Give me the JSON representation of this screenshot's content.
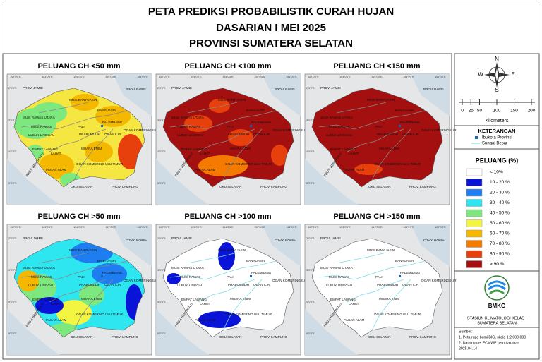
{
  "header": {
    "title": [
      "PETA PREDIKSI PROBABILISTIK CURAH HUJAN",
      "DASARIAN I MEI 2025",
      "PROVINSI SUMATERA SELATAN"
    ]
  },
  "panels": [
    {
      "title": "PELUANG CH <50 mm"
    },
    {
      "title": "PELUANG CH <100 mm"
    },
    {
      "title": "PELUANG CH <150 mm"
    },
    {
      "title": "PELUANG CH >50 mm"
    },
    {
      "title": "PELUANG CH >100 mm"
    },
    {
      "title": "PELUANG CH >150 mm"
    }
  ],
  "map_labels": [
    {
      "text": "PROV. JAMBI"
    },
    {
      "text": "PROV. BABEL"
    },
    {
      "text": "MUSI BANYUASIN"
    },
    {
      "text": "BANYUASIN"
    },
    {
      "text": "MUSI RAWAS UTARA"
    },
    {
      "text": "MUSI RAWAS"
    },
    {
      "text": "PALI"
    },
    {
      "text": "PALEMBANG"
    },
    {
      "text": "LUBUK LINGGAU"
    },
    {
      "text": "PRABUMULIH"
    },
    {
      "text": "OGAN ILIR"
    },
    {
      "text": "OGAN KOMERING ILIR"
    },
    {
      "text": "EMPAT LAWANG"
    },
    {
      "text": "LAHAT"
    },
    {
      "text": "MUARA ENIM"
    },
    {
      "text": "OGAN KOMERING ULU TIMUR"
    },
    {
      "text": "PAGAR ALAM"
    },
    {
      "text": "PROV. BENGKULU"
    },
    {
      "text": "OKU SELATAN"
    },
    {
      "text": "PROV. LAMPUNG"
    }
  ],
  "grid_labels": {
    "lon": [
      "102°0'0\"E",
      "103°0'0\"E",
      "104°0'0\"E",
      "105°0'0\"E",
      "106°0'0\"E"
    ],
    "lat": [
      "2°0'0\"S",
      "3°0'0\"S",
      "4°0'0\"S",
      "5°0'0\"S"
    ]
  },
  "legend": {
    "compass": [
      "N",
      "E",
      "S",
      "W"
    ],
    "scale": {
      "ticks": [
        0,
        25,
        50,
        100,
        150,
        200
      ],
      "unit": "Kilometers"
    },
    "keterangan": {
      "title": "KETERANGAN",
      "items": [
        "Ibukota Provinsi",
        "Sungai Besar"
      ]
    },
    "peluang": {
      "title": "PELUANG (%)",
      "classes": [
        {
          "label": "< 10%",
          "color": "#ffffff"
        },
        {
          "label": "10 - 20 %",
          "color": "#0a14d8"
        },
        {
          "label": "20 - 30 %",
          "color": "#1e7df0"
        },
        {
          "label": "30 - 40 %",
          "color": "#2ee6f0"
        },
        {
          "label": "40 - 50 %",
          "color": "#7de87d"
        },
        {
          "label": "50 - 60 %",
          "color": "#f2f542"
        },
        {
          "label": "60 - 70 %",
          "color": "#f5b800"
        },
        {
          "label": "70 - 80 %",
          "color": "#f57a00"
        },
        {
          "label": "80 - 90 %",
          "color": "#e8400c"
        },
        {
          "label": "> 90 %",
          "color": "#a3100f"
        }
      ]
    },
    "logo": "BMKG",
    "station": [
      "STASIUN KLIMATOLOGI KELAS I",
      "SUMATERA SELATAN"
    ],
    "sumber": [
      "Sumber:",
      "1. Peta rupa bumi BIG, skala 1:2.000.000",
      "2. Data model ECMWF pemutakhiran",
      "2025.04.14"
    ]
  }
}
